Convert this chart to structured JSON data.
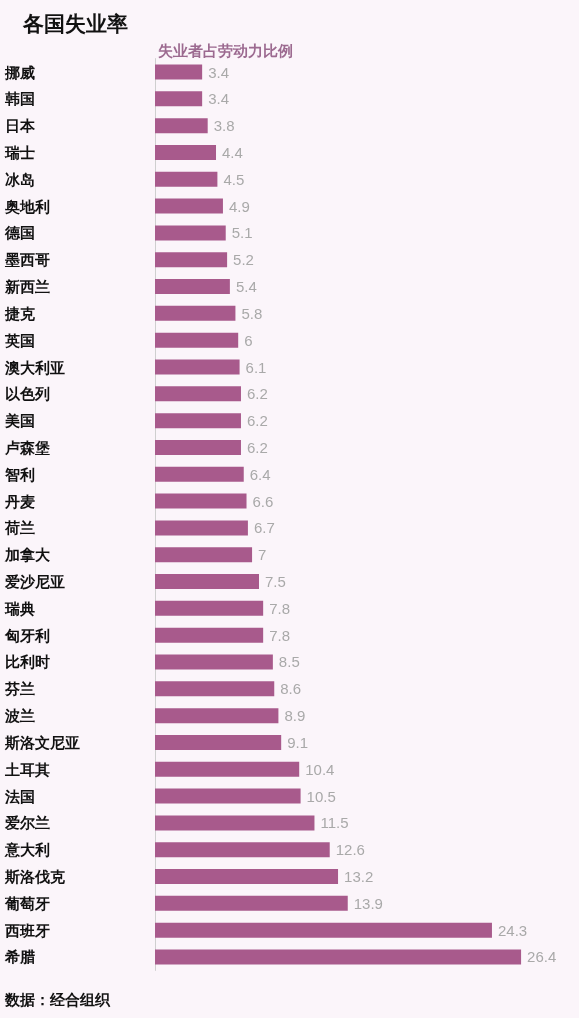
{
  "chart_data": {
    "type": "bar",
    "orientation": "horizontal",
    "title": "各国失业率",
    "subtitle": "失业者占劳动力比例",
    "categories": [
      "挪威",
      "韩国",
      "日本",
      "瑞士",
      "冰岛",
      "奥地利",
      "德国",
      "墨西哥",
      "新西兰",
      "捷克",
      "英国",
      "澳大利亚",
      "以色列",
      "美国",
      "卢森堡",
      "智利",
      "丹麦",
      "荷兰",
      "加拿大",
      "爱沙尼亚",
      "瑞典",
      "匈牙利",
      "比利时",
      "芬兰",
      "波兰",
      "斯洛文尼亚",
      "土耳其",
      "法国",
      "爱尔兰",
      "意大利",
      "斯洛伐克",
      "葡萄牙",
      "西班牙",
      "希腊"
    ],
    "values": [
      3.4,
      3.4,
      3.8,
      4.4,
      4.5,
      4.9,
      5.1,
      5.2,
      5.4,
      5.8,
      6,
      6.1,
      6.2,
      6.2,
      6.2,
      6.4,
      6.6,
      6.7,
      7,
      7.5,
      7.8,
      7.8,
      8.5,
      8.6,
      8.9,
      9.1,
      10.4,
      10.5,
      11.5,
      12.6,
      13.2,
      13.9,
      24.3,
      26.4
    ],
    "color": "#a85a8c",
    "data_labels": true,
    "annotations": [
      "数据：经合组织"
    ]
  }
}
